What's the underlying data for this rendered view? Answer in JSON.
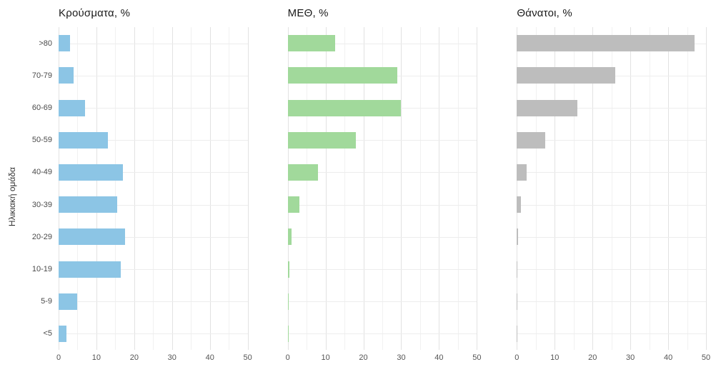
{
  "y_axis_label": "Ηλικιακή ομάδα",
  "chart_data": [
    {
      "type": "bar",
      "orientation": "horizontal",
      "title": "Κρούσματα, %",
      "color": "#8cc5e5",
      "categories": [
        ">80",
        "70-79",
        "60-69",
        "50-59",
        "40-49",
        "30-39",
        "20-29",
        "10-19",
        "5-9",
        "<5"
      ],
      "values": [
        3,
        4,
        7,
        13,
        17,
        15.5,
        17.5,
        16.5,
        5,
        2
      ],
      "xlim": [
        0,
        50
      ],
      "xticks": [
        0,
        10,
        20,
        30,
        40,
        50
      ],
      "grid": "on",
      "legend": "none"
    },
    {
      "type": "bar",
      "orientation": "horizontal",
      "title": "ΜΕΘ, %",
      "color": "#a1d99b",
      "categories": [
        ">80",
        "70-79",
        "60-69",
        "50-59",
        "40-49",
        "30-39",
        "20-29",
        "10-19",
        "5-9",
        "<5"
      ],
      "values": [
        12.5,
        29,
        30,
        18,
        8,
        3,
        1,
        0.5,
        0.3,
        0.3
      ],
      "xlim": [
        0,
        50
      ],
      "xticks": [
        0,
        10,
        20,
        30,
        40,
        50
      ],
      "grid": "on",
      "legend": "none"
    },
    {
      "type": "bar",
      "orientation": "horizontal",
      "title": "Θάνατοι, %",
      "color": "#bdbdbd",
      "categories": [
        ">80",
        "70-79",
        "60-69",
        "50-59",
        "40-49",
        "30-39",
        "20-29",
        "10-19",
        "5-9",
        "<5"
      ],
      "values": [
        47,
        26,
        16,
        7.5,
        2.5,
        1,
        0.3,
        0.2,
        0.1,
        0.2
      ],
      "xlim": [
        0,
        50
      ],
      "xticks": [
        0,
        10,
        20,
        30,
        40,
        50
      ],
      "grid": "on",
      "legend": "none"
    }
  ]
}
